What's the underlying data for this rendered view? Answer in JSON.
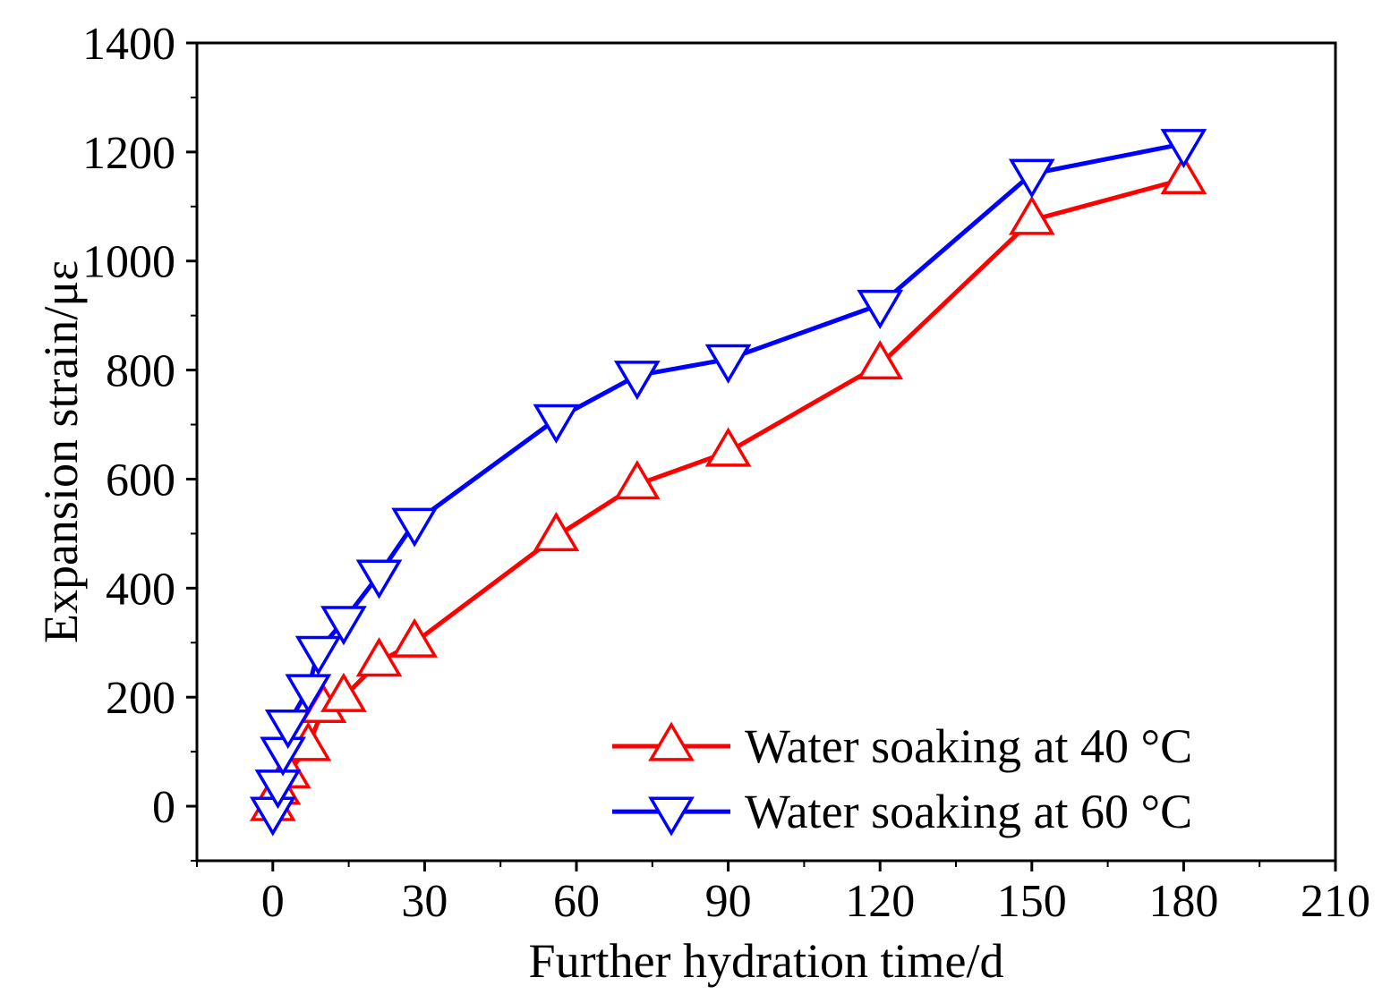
{
  "chart_data": {
    "type": "line",
    "xlabel": "Further hydration time/d",
    "ylabel": "Expansion strain/με",
    "xlim": [
      -15,
      210
    ],
    "ylim": [
      -100,
      1400
    ],
    "xticks": [
      0,
      30,
      60,
      90,
      120,
      150,
      180,
      210
    ],
    "yticks": [
      0,
      200,
      400,
      600,
      800,
      1000,
      1200,
      1400
    ],
    "xtick_labels": [
      "0",
      "30",
      "60",
      "90",
      "120",
      "150",
      "180",
      "210"
    ],
    "ytick_labels": [
      "0",
      "200",
      "400",
      "600",
      "800",
      "1000",
      "1200",
      "1400"
    ],
    "grid": false,
    "legend_position": "bottom-right",
    "series": [
      {
        "name": "Water soaking at 40 °C",
        "color": "#ff0000",
        "marker": "triangle-up",
        "x": [
          0,
          1,
          3,
          7,
          10,
          14,
          21,
          28,
          56,
          72,
          90,
          120,
          150,
          180
        ],
        "y": [
          0,
          30,
          60,
          110,
          180,
          200,
          265,
          300,
          495,
          590,
          650,
          810,
          1075,
          1150
        ]
      },
      {
        "name": "Water soaking at 60 °C",
        "color": "#0000ff",
        "marker": "triangle-down",
        "x": [
          0,
          1,
          2,
          3,
          7,
          9,
          14,
          21,
          28,
          56,
          72,
          90,
          120,
          150,
          180
        ],
        "y": [
          -10,
          40,
          100,
          150,
          215,
          285,
          340,
          425,
          520,
          710,
          790,
          820,
          920,
          1160,
          1215
        ]
      }
    ]
  }
}
